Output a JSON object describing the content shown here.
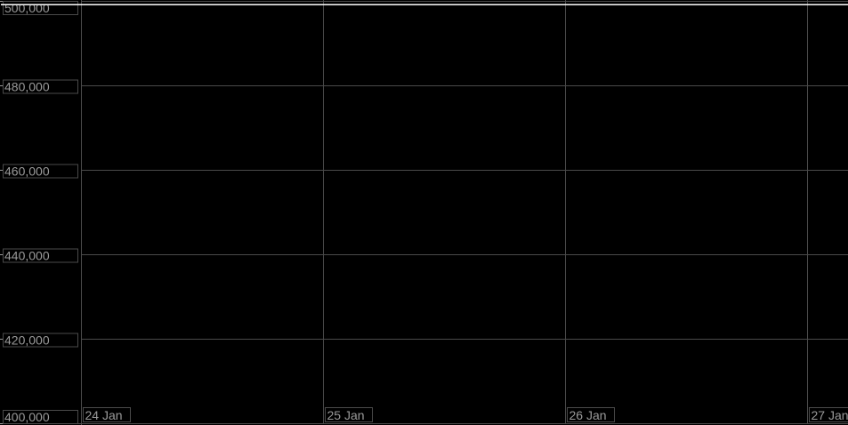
{
  "chart_data": {
    "type": "line",
    "title": "",
    "xlabel": "",
    "ylabel": "",
    "ylim": [
      400000,
      500000
    ],
    "y_ticks": [
      "400,000",
      "420,000",
      "440,000",
      "460,000",
      "480,000",
      "500,000"
    ],
    "y_tick_values": [
      400000,
      420000,
      440000,
      460000,
      480000,
      500000
    ],
    "x_ticks": [
      "24 Jan",
      "25 Jan",
      "26 Jan",
      "27 Jan"
    ],
    "x_tick_values": [
      0,
      1,
      2,
      3
    ],
    "xlim": [
      0,
      3.17
    ],
    "grid": true,
    "series": [
      {
        "x": [
          0,
          3.17
        ],
        "values": [
          499100,
          499100
        ]
      }
    ],
    "colors": {
      "background": "#000000",
      "grid": "#4a4a4a",
      "line": "#ffffff",
      "label": "#9a9a9a"
    }
  }
}
